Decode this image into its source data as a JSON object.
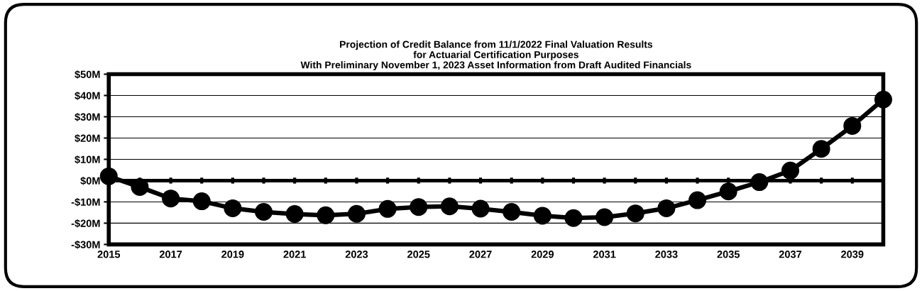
{
  "chart_data": {
    "type": "line",
    "title": "Projection of Credit Balance from 11/1/2022 Final Valuation Results\nfor Actuarial Certification Purposes\nWith Preliminary November 1, 2023 Asset Information from Draft Audited Financials",
    "x": [
      2015,
      2016,
      2017,
      2018,
      2019,
      2020,
      2021,
      2022,
      2023,
      2024,
      2025,
      2026,
      2027,
      2028,
      2029,
      2030,
      2031,
      2032,
      2033,
      2034,
      2035,
      2036,
      2037,
      2038,
      2039,
      2040
    ],
    "series": [
      {
        "color": "#000000",
        "values": [
          2,
          -3,
          -8.4,
          -9.7,
          -13,
          -14.7,
          -15.7,
          -16.3,
          -15.6,
          -13.3,
          -12.4,
          -12.1,
          -13.2,
          -14.7,
          -16.5,
          -17.6,
          -17.2,
          -15.4,
          -13,
          -9.2,
          -5.1,
          -0.7,
          4.7,
          14.9,
          25.7,
          38.1
        ]
      }
    ],
    "xlim": [
      2015,
      2040
    ],
    "xticks": [
      2015,
      {
        "value": 2016,
        "label": null
      },
      2017,
      {
        "value": 2018,
        "label": null
      },
      2019,
      {
        "value": 2020,
        "label": null
      },
      2021,
      {
        "value": 2022,
        "label": null
      },
      2023,
      {
        "value": 2024,
        "label": null
      },
      2025,
      {
        "value": 2026,
        "label": null
      },
      2027,
      {
        "value": 2028,
        "label": null
      },
      2029,
      {
        "value": 2030,
        "label": null
      },
      2031,
      {
        "value": 2032,
        "label": null
      },
      2033,
      {
        "value": 2034,
        "label": null
      },
      2035,
      {
        "value": 2036,
        "label": null
      },
      2037,
      {
        "value": 2038,
        "label": null
      },
      2039
    ],
    "ylim": [
      -30,
      50
    ],
    "yticks": [
      {
        "value": -30,
        "label": "-$30M"
      },
      {
        "value": -20,
        "label": "-$20M"
      },
      {
        "value": -10,
        "label": "-$10M"
      },
      {
        "value": 0,
        "label": "$0M"
      },
      {
        "value": 10,
        "label": "$10M"
      },
      {
        "value": 20,
        "label": "$20M"
      },
      {
        "value": 30,
        "label": "$30M"
      },
      {
        "value": 40,
        "label": "$40M"
      },
      {
        "value": 50,
        "label": "$50M"
      }
    ],
    "grid": "y",
    "legend": false,
    "marker": "circle",
    "line_style": "solid"
  }
}
